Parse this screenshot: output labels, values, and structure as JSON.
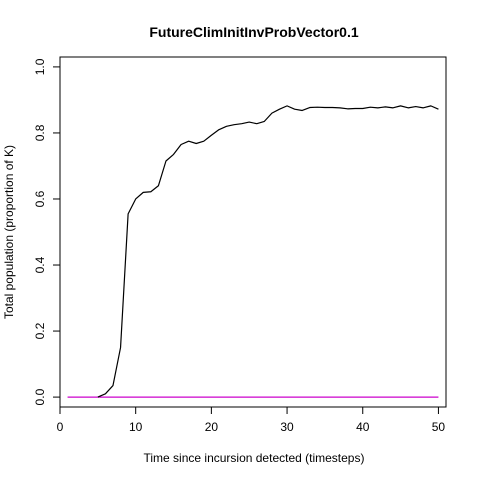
{
  "chart_data": {
    "type": "line",
    "title": "FutureClimInitInvProbVector0.1",
    "xlabel": "Time since incursion detected (timesteps)",
    "ylabel": "Total population (proportion of K)",
    "xlim": [
      0,
      51
    ],
    "ylim": [
      -0.03,
      1.03
    ],
    "xticks": [
      0,
      10,
      20,
      30,
      40,
      50
    ],
    "yticks": [
      0.0,
      0.2,
      0.4,
      0.6,
      0.8,
      1.0
    ],
    "xtick_labels": [
      "0",
      "10",
      "20",
      "30",
      "40",
      "50"
    ],
    "ytick_labels": [
      "0.0",
      "0.2",
      "0.4",
      "0.6",
      "0.8",
      "1.0"
    ],
    "grid": false,
    "series": [
      {
        "color": "#000000",
        "x": [
          5,
          6,
          7,
          8,
          9,
          10,
          11,
          12,
          13,
          14,
          15,
          16,
          17,
          18,
          19,
          20,
          21,
          22,
          23,
          24,
          25,
          26,
          27,
          28,
          29,
          30,
          31,
          32,
          33,
          34,
          35,
          36,
          37,
          38,
          39,
          40,
          41,
          42,
          43,
          44,
          45,
          46,
          47,
          48,
          49,
          50
        ],
        "y": [
          0.0,
          0.01,
          0.035,
          0.15,
          0.555,
          0.6,
          0.62,
          0.622,
          0.64,
          0.715,
          0.735,
          0.765,
          0.775,
          0.768,
          0.775,
          0.793,
          0.81,
          0.82,
          0.825,
          0.828,
          0.833,
          0.828,
          0.835,
          0.86,
          0.872,
          0.882,
          0.872,
          0.868,
          0.877,
          0.878,
          0.877,
          0.877,
          0.876,
          0.873,
          0.874,
          0.874,
          0.878,
          0.876,
          0.879,
          0.876,
          0.882,
          0.876,
          0.88,
          0.876,
          0.882,
          0.872
        ]
      },
      {
        "color": "#cc00cc",
        "x": [
          1,
          50
        ],
        "y": [
          0.0,
          0.0
        ]
      }
    ]
  }
}
